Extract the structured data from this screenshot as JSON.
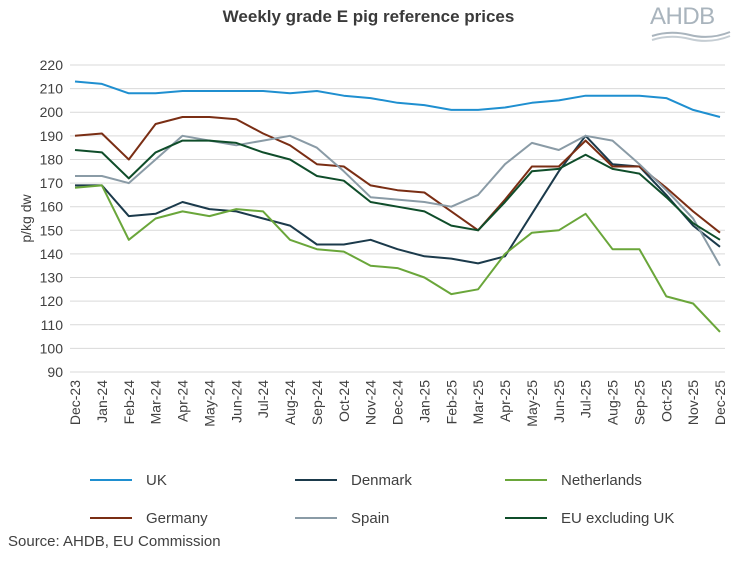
{
  "logo": {
    "text": "AHDB"
  },
  "source": "Source: AHDB, EU Commission",
  "chart_data": {
    "type": "line",
    "title": "Weekly grade E pig reference prices",
    "xlabel": "",
    "ylabel": "p/kg dw",
    "ylim": [
      90,
      220
    ],
    "yticks": [
      90,
      100,
      110,
      120,
      130,
      140,
      150,
      160,
      170,
      180,
      190,
      200,
      210,
      220
    ],
    "grid": true,
    "legend_position": "bottom",
    "categories": [
      "Dec-23",
      "Jan-24",
      "Feb-24",
      "Mar-24",
      "Apr-24",
      "May-24",
      "Jun-24",
      "Jul-24",
      "Aug-24",
      "Sep-24",
      "Oct-24",
      "Nov-24",
      "Dec-24",
      "Jan-25",
      "Feb-25",
      "Mar-25",
      "Apr-25",
      "May-25",
      "Jun-25",
      "Jul-25",
      "Aug-25",
      "Sep-25",
      "Oct-25",
      "Nov-25",
      "Dec-25"
    ],
    "series": [
      {
        "name": "UK",
        "color": "#1f8fd0",
        "values": [
          213,
          212,
          208,
          208,
          209,
          209,
          209,
          209,
          208,
          209,
          207,
          206,
          204,
          203,
          201,
          201,
          202,
          204,
          205,
          207,
          207,
          207,
          206,
          201,
          198
        ]
      },
      {
        "name": "Denmark",
        "color": "#1b3a4b",
        "values": [
          169,
          169,
          156,
          157,
          162,
          159,
          158,
          155,
          152,
          144,
          144,
          146,
          142,
          139,
          138,
          136,
          139,
          157,
          175,
          190,
          178,
          177,
          165,
          152,
          143
        ]
      },
      {
        "name": "Netherlands",
        "color": "#6aa63a",
        "values": [
          168,
          169,
          146,
          155,
          158,
          156,
          159,
          158,
          146,
          142,
          141,
          135,
          134,
          130,
          123,
          125,
          140,
          149,
          150,
          157,
          142,
          142,
          122,
          119,
          107
        ]
      },
      {
        "name": "Germany",
        "color": "#7a2e14",
        "values": [
          190,
          191,
          180,
          195,
          198,
          198,
          197,
          191,
          186,
          178,
          177,
          169,
          167,
          166,
          158,
          150,
          163,
          177,
          177,
          188,
          177,
          177,
          168,
          158,
          149
        ]
      },
      {
        "name": "Spain",
        "color": "#8a9ba6",
        "values": [
          173,
          173,
          170,
          180,
          190,
          188,
          186,
          188,
          190,
          185,
          175,
          164,
          163,
          162,
          160,
          165,
          178,
          187,
          184,
          190,
          188,
          178,
          167,
          155,
          135
        ]
      },
      {
        "name": "EU excluding UK",
        "color": "#0f4d2a",
        "values": [
          184,
          183,
          172,
          183,
          188,
          188,
          187,
          183,
          180,
          173,
          171,
          162,
          160,
          158,
          152,
          150,
          162,
          175,
          176,
          182,
          176,
          174,
          164,
          153,
          146
        ]
      }
    ]
  }
}
